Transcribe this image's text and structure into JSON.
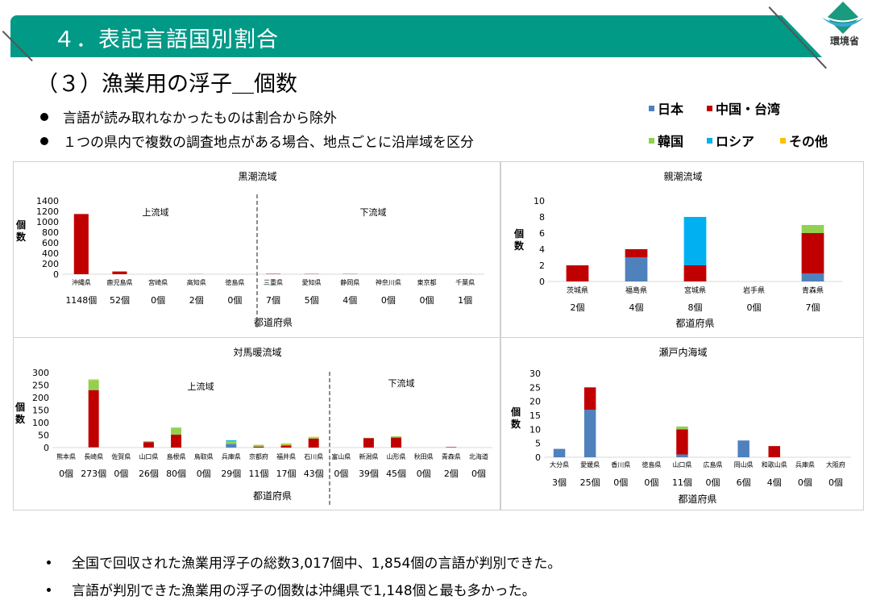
{
  "header": {
    "title": "４．表記言語国別割合",
    "logo_text": "環境省"
  },
  "subtitle": "（３）漁業用の浮子＿個数",
  "bullets": [
    "言語が読み取れなかったものは割合から除外",
    "１つの県内で複数の調査地点がある場合、地点ごとに沿岸域を区分"
  ],
  "footer": [
    "全国で回収された漁業用浮子の総数3,017個中、1,854個の言語が判別できた。",
    "言語が判別できた漁業用の浮子の個数は沖縄県で1,148個と最も多かった。"
  ],
  "legend": [
    {
      "name": "日本",
      "color": "#4f81bd"
    },
    {
      "name": "中国・台湾",
      "color": "#c00000"
    },
    {
      "name": "韓国",
      "color": "#92d050"
    },
    {
      "name": "ロシア",
      "color": "#00b0f0"
    },
    {
      "name": "その他",
      "color": "#ffc000"
    }
  ],
  "chart_data": [
    {
      "type": "bar",
      "stacked": true,
      "title": "黒潮流域",
      "xlabel": "都道府県",
      "ylabel": "個数",
      "ylim": [
        0,
        1400
      ],
      "yticks": [
        0,
        200,
        400,
        600,
        800,
        1000,
        1200,
        1400
      ],
      "regions": [
        "上流域",
        "下流域"
      ],
      "categories": [
        "沖縄県",
        "鹿児島県",
        "宮崎県",
        "高知県",
        "徳島県",
        "三重県",
        "愛知県",
        "静岡県",
        "神奈川県",
        "東京都",
        "千葉県"
      ],
      "counts": [
        "1148個",
        "52個",
        "0個",
        "2個",
        "0個",
        "7個",
        "5個",
        "4個",
        "0個",
        "0個",
        "1個"
      ],
      "series": [
        {
          "name": "日本",
          "values": [
            0,
            0,
            0,
            0,
            0,
            0,
            0,
            0,
            0,
            0,
            0
          ]
        },
        {
          "name": "中国・台湾",
          "values": [
            1148,
            52,
            0,
            2,
            0,
            7,
            5,
            4,
            0,
            0,
            1
          ]
        },
        {
          "name": "韓国",
          "values": [
            0,
            0,
            0,
            0,
            0,
            0,
            0,
            0,
            0,
            0,
            0
          ]
        },
        {
          "name": "ロシア",
          "values": [
            0,
            0,
            0,
            0,
            0,
            0,
            0,
            0,
            0,
            0,
            0
          ]
        },
        {
          "name": "その他",
          "values": [
            0,
            0,
            0,
            0,
            0,
            0,
            0,
            0,
            0,
            0,
            0
          ]
        }
      ]
    },
    {
      "type": "bar",
      "stacked": true,
      "title": "親潮流域",
      "xlabel": "都道府県",
      "ylabel": "個数",
      "ylim": [
        0,
        10
      ],
      "yticks": [
        0,
        2,
        4,
        6,
        8,
        10
      ],
      "regions": [],
      "categories": [
        "茨城県",
        "福島県",
        "宮城県",
        "岩手県",
        "青森県"
      ],
      "counts": [
        "2個",
        "4個",
        "8個",
        "0個",
        "7個"
      ],
      "series": [
        {
          "name": "日本",
          "values": [
            0,
            3,
            0,
            0,
            1
          ]
        },
        {
          "name": "中国・台湾",
          "values": [
            2,
            1,
            2,
            0,
            5
          ]
        },
        {
          "name": "韓国",
          "values": [
            0,
            0,
            0,
            0,
            1
          ]
        },
        {
          "name": "ロシア",
          "values": [
            0,
            0,
            6,
            0,
            0
          ]
        },
        {
          "name": "その他",
          "values": [
            0,
            0,
            0,
            0,
            0
          ]
        }
      ]
    },
    {
      "type": "bar",
      "stacked": true,
      "title": "対馬暖流域",
      "xlabel": "都道府県",
      "ylabel": "個数",
      "ylim": [
        0,
        300
      ],
      "yticks": [
        0,
        50,
        100,
        150,
        200,
        250,
        300
      ],
      "regions": [
        "上流域",
        "下流域"
      ],
      "categories": [
        "熊本県",
        "長崎県",
        "佐賀県",
        "山口県",
        "島根県",
        "鳥取県",
        "兵庫県",
        "京都府",
        "福井県",
        "石川県",
        "富山県",
        "新潟県",
        "山形県",
        "秋田県",
        "青森県",
        "北海道"
      ],
      "counts": [
        "0個",
        "273個",
        "0個",
        "26個",
        "80個",
        "0個",
        "29個",
        "11個",
        "17個",
        "43個",
        "0個",
        "39個",
        "45個",
        "0個",
        "2個",
        "0個"
      ],
      "series": [
        {
          "name": "日本",
          "values": [
            0,
            2,
            0,
            0,
            0,
            0,
            15,
            0,
            0,
            0,
            0,
            0,
            0,
            0,
            0,
            0
          ]
        },
        {
          "name": "中国・台湾",
          "values": [
            0,
            228,
            0,
            22,
            52,
            0,
            0,
            4,
            8,
            36,
            0,
            38,
            40,
            0,
            2,
            0
          ]
        },
        {
          "name": "韓国",
          "values": [
            0,
            40,
            0,
            4,
            28,
            0,
            10,
            7,
            5,
            5,
            0,
            1,
            5,
            0,
            0,
            0
          ]
        },
        {
          "name": "ロシア",
          "values": [
            0,
            0,
            0,
            0,
            0,
            0,
            4,
            0,
            0,
            0,
            0,
            0,
            0,
            0,
            0,
            0
          ]
        },
        {
          "name": "その他",
          "values": [
            0,
            3,
            0,
            0,
            0,
            0,
            0,
            0,
            4,
            2,
            0,
            0,
            0,
            0,
            0,
            0
          ]
        }
      ]
    },
    {
      "type": "bar",
      "stacked": true,
      "title": "瀬戸内海域",
      "xlabel": "都道府県",
      "ylabel": "個数",
      "ylim": [
        0,
        30
      ],
      "yticks": [
        0,
        5,
        10,
        15,
        20,
        25,
        30
      ],
      "regions": [],
      "categories": [
        "大分県",
        "愛媛県",
        "香川県",
        "徳島県",
        "山口県",
        "広島県",
        "岡山県",
        "和歌山県",
        "兵庫県",
        "大阪府"
      ],
      "counts": [
        "3個",
        "25個",
        "0個",
        "0個",
        "11個",
        "0個",
        "6個",
        "4個",
        "0個",
        "0個"
      ],
      "series": [
        {
          "name": "日本",
          "values": [
            3,
            17,
            0,
            0,
            1,
            0,
            6,
            0,
            0,
            0
          ]
        },
        {
          "name": "中国・台湾",
          "values": [
            0,
            8,
            0,
            0,
            9,
            0,
            0,
            4,
            0,
            0
          ]
        },
        {
          "name": "韓国",
          "values": [
            0,
            0,
            0,
            0,
            1,
            0,
            0,
            0,
            0,
            0
          ]
        },
        {
          "name": "ロシア",
          "values": [
            0,
            0,
            0,
            0,
            0,
            0,
            0,
            0,
            0,
            0
          ]
        },
        {
          "name": "その他",
          "values": [
            0,
            0,
            0,
            0,
            0,
            0,
            0,
            0,
            0,
            0
          ]
        }
      ]
    }
  ]
}
